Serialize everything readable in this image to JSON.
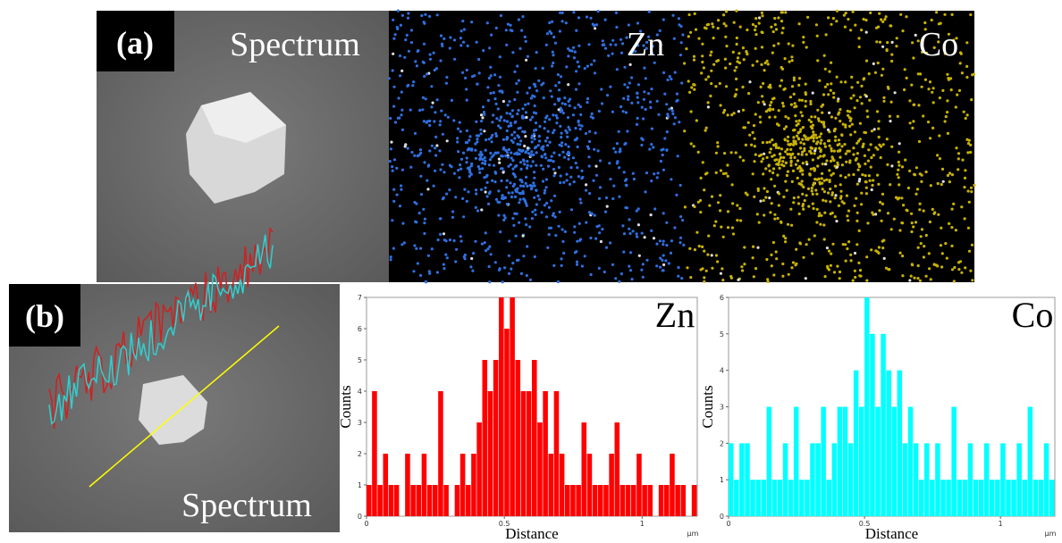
{
  "panel_a": {
    "label": "(a)",
    "spectrum_label": "Spectrum",
    "zn_label": "Zn",
    "co_label": "Co"
  },
  "panel_b": {
    "label": "(b)",
    "spectrum_label": "Spectrum"
  },
  "chart_data": [
    {
      "type": "histogram",
      "title": "Zn",
      "x_label": "Distance",
      "y_label": "Counts",
      "x_unit": "μm",
      "color": "#ff0000",
      "bins": [
        0,
        0.02,
        0.04,
        0.06,
        0.08,
        0.1,
        0.12,
        0.14,
        0.16,
        0.18,
        0.2,
        0.22,
        0.24,
        0.26,
        0.28,
        0.3,
        0.32,
        0.34,
        0.36,
        0.38,
        0.4,
        0.42,
        0.44,
        0.46,
        0.48,
        0.5,
        0.52,
        0.54,
        0.56,
        0.58,
        0.6,
        0.62,
        0.64,
        0.66,
        0.68,
        0.7,
        0.72,
        0.74,
        0.76,
        0.78,
        0.8,
        0.82,
        0.84,
        0.86,
        0.88,
        0.9,
        0.92,
        0.94,
        0.96,
        0.98,
        1,
        1.02,
        1.04,
        1.06,
        1.08,
        1.1,
        1.12,
        1.14,
        1.16,
        1.18,
        1.2
      ],
      "values": [
        1,
        4,
        1,
        2,
        1,
        1,
        0,
        2,
        1,
        1,
        2,
        1,
        1,
        4,
        1,
        0,
        1,
        2,
        1,
        2,
        3,
        5,
        4,
        5,
        7,
        6,
        7,
        5,
        4,
        4,
        5,
        3,
        4,
        2,
        4,
        2,
        1,
        1,
        1,
        3,
        2,
        1,
        1,
        1,
        2,
        3,
        1,
        1,
        1,
        2,
        1,
        1,
        0,
        1,
        1,
        2,
        1,
        1,
        0,
        1
      ],
      "xlim": [
        0,
        1.2
      ],
      "ylim": [
        0,
        7
      ],
      "xticks": [
        0,
        0.5,
        1
      ],
      "yticks": [
        0,
        1,
        2,
        3,
        4,
        5,
        6,
        7
      ]
    },
    {
      "type": "histogram",
      "title": "Co",
      "x_label": "Distance",
      "y_label": "Counts",
      "x_unit": "μm",
      "color": "#00ffff",
      "bins": [
        0,
        0.02,
        0.04,
        0.06,
        0.08,
        0.1,
        0.12,
        0.14,
        0.16,
        0.18,
        0.2,
        0.22,
        0.24,
        0.26,
        0.28,
        0.3,
        0.32,
        0.34,
        0.36,
        0.38,
        0.4,
        0.42,
        0.44,
        0.46,
        0.48,
        0.5,
        0.52,
        0.54,
        0.56,
        0.58,
        0.6,
        0.62,
        0.64,
        0.66,
        0.68,
        0.7,
        0.72,
        0.74,
        0.76,
        0.78,
        0.8,
        0.82,
        0.84,
        0.86,
        0.88,
        0.9,
        0.92,
        0.94,
        0.96,
        0.98,
        1,
        1.02,
        1.04,
        1.06,
        1.08,
        1.1,
        1.12,
        1.14,
        1.16,
        1.18,
        1.2
      ],
      "values": [
        2,
        1,
        2,
        2,
        1,
        1,
        1,
        3,
        1,
        1,
        2,
        1,
        3,
        1,
        1,
        2,
        2,
        3,
        1,
        2,
        3,
        3,
        2,
        4,
        3,
        6,
        5,
        3,
        5,
        4,
        3,
        4,
        2,
        3,
        2,
        1,
        2,
        1,
        2,
        1,
        1,
        3,
        1,
        1,
        2,
        1,
        1,
        2,
        1,
        1,
        2,
        1,
        1,
        2,
        1,
        3,
        1,
        1,
        2,
        1
      ],
      "xlim": [
        0,
        1.2
      ],
      "ylim": [
        0,
        6
      ],
      "xticks": [
        0,
        0.5,
        1
      ],
      "yticks": [
        0,
        1,
        2,
        3,
        4,
        5,
        6
      ]
    }
  ]
}
